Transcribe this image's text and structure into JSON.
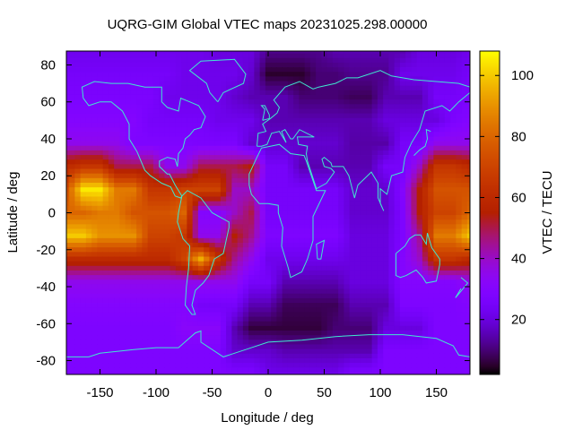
{
  "chart_data": {
    "type": "heatmap",
    "title": "UQRG-GIM Global VTEC maps 20231025.298.00000",
    "xlabel": "Longitude / deg",
    "ylabel": "Latitude / deg",
    "colorbar_label": "VTEC / TECU",
    "xlim": [
      -180,
      180
    ],
    "ylim": [
      -87.5,
      87.5
    ],
    "clim": [
      2,
      108
    ],
    "xticks": [
      -150,
      -100,
      -50,
      0,
      50,
      100,
      150
    ],
    "yticks": [
      -80,
      -60,
      -40,
      -20,
      0,
      20,
      40,
      60,
      80
    ],
    "cbticks": [
      20,
      40,
      60,
      80,
      100
    ],
    "colormap": "gnuplot rgbformulae 7,5,15 (black-purple-red-yellow)",
    "overlay": "coastlines",
    "overlay_color": "#40e8d0",
    "grid": false,
    "lon": [
      -180,
      -165,
      -150,
      -135,
      -120,
      -105,
      -90,
      -75,
      -60,
      -45,
      -30,
      -15,
      0,
      15,
      30,
      45,
      60,
      75,
      90,
      105,
      120,
      135,
      150,
      165,
      180
    ],
    "lat": [
      87.5,
      75,
      62.5,
      50,
      37.5,
      25,
      12.5,
      0,
      -12.5,
      -25,
      -37.5,
      -50,
      -62.5,
      -75,
      -87.5
    ],
    "values": [
      [
        22,
        22,
        22,
        22,
        22,
        22,
        22,
        22,
        22,
        20,
        20,
        20,
        12,
        12,
        12,
        12,
        15,
        15,
        15,
        15,
        15,
        20,
        20,
        20,
        22
      ],
      [
        25,
        25,
        25,
        25,
        25,
        25,
        25,
        22,
        22,
        22,
        22,
        18,
        5,
        5,
        5,
        10,
        10,
        12,
        12,
        12,
        22,
        22,
        22,
        22,
        25
      ],
      [
        27,
        27,
        27,
        27,
        27,
        27,
        22,
        22,
        22,
        22,
        18,
        15,
        15,
        15,
        10,
        10,
        10,
        8,
        8,
        15,
        15,
        15,
        25,
        25,
        27
      ],
      [
        30,
        30,
        30,
        30,
        30,
        25,
        25,
        25,
        25,
        22,
        22,
        22,
        15,
        15,
        15,
        15,
        15,
        15,
        15,
        20,
        20,
        20,
        20,
        27,
        30
      ],
      [
        35,
        35,
        35,
        35,
        28,
        28,
        28,
        28,
        27,
        27,
        27,
        18,
        18,
        18,
        18,
        18,
        18,
        14,
        14,
        14,
        25,
        25,
        35,
        35,
        35
      ],
      [
        60,
        65,
        65,
        50,
        50,
        50,
        35,
        35,
        50,
        50,
        50,
        55,
        25,
        25,
        15,
        15,
        15,
        15,
        15,
        25,
        25,
        40,
        65,
        65,
        60
      ],
      [
        75,
        105,
        105,
        85,
        85,
        65,
        65,
        70,
        70,
        70,
        40,
        40,
        25,
        25,
        25,
        25,
        25,
        18,
        18,
        18,
        30,
        55,
        75,
        75,
        75
      ],
      [
        80,
        80,
        85,
        85,
        75,
        75,
        75,
        80,
        30,
        30,
        40,
        50,
        25,
        25,
        25,
        25,
        25,
        18,
        18,
        18,
        28,
        55,
        70,
        70,
        80
      ],
      [
        100,
        100,
        90,
        90,
        90,
        70,
        70,
        65,
        35,
        35,
        55,
        45,
        28,
        28,
        28,
        28,
        28,
        20,
        20,
        20,
        28,
        45,
        85,
        85,
        100
      ],
      [
        60,
        60,
        60,
        60,
        60,
        60,
        60,
        70,
        95,
        65,
        45,
        35,
        22,
        22,
        22,
        22,
        22,
        20,
        20,
        20,
        30,
        40,
        65,
        65,
        60
      ],
      [
        35,
        35,
        35,
        35,
        35,
        35,
        35,
        35,
        35,
        35,
        35,
        25,
        25,
        15,
        15,
        15,
        15,
        20,
        20,
        20,
        30,
        30,
        30,
        30,
        35
      ],
      [
        30,
        30,
        30,
        30,
        30,
        30,
        30,
        30,
        25,
        25,
        25,
        15,
        15,
        8,
        8,
        8,
        8,
        15,
        15,
        15,
        28,
        28,
        28,
        28,
        30
      ],
      [
        28,
        28,
        28,
        28,
        28,
        28,
        28,
        32,
        32,
        32,
        15,
        6,
        6,
        6,
        6,
        6,
        10,
        10,
        10,
        20,
        20,
        20,
        28,
        28,
        28
      ],
      [
        28,
        28,
        28,
        28,
        28,
        28,
        28,
        28,
        28,
        28,
        18,
        18,
        18,
        15,
        15,
        15,
        15,
        15,
        15,
        28,
        28,
        28,
        28,
        28,
        28
      ],
      [
        28,
        28,
        28,
        28,
        28,
        28,
        28,
        28,
        28,
        28,
        28,
        28,
        22,
        22,
        22,
        22,
        22,
        28,
        28,
        28,
        28,
        28,
        28,
        28,
        28
      ]
    ]
  }
}
